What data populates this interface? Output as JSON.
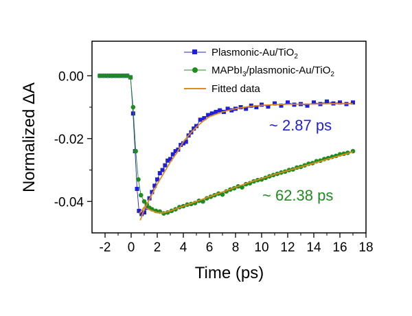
{
  "chart_data": {
    "type": "scatter",
    "xlabel": "Time (ps)",
    "ylabel": "Normalized ΔA",
    "xlim": [
      -3,
      18
    ],
    "ylim": [
      -0.05,
      0.011
    ],
    "xticks": [
      "-2",
      "0",
      "2",
      "4",
      "6",
      "8",
      "10",
      "12",
      "14",
      "16",
      "18"
    ],
    "yticks": [
      "0.00",
      "-0.02",
      "-0.04"
    ],
    "grid": false,
    "legend_position": "top-right",
    "legend": {
      "s1": "Plasmonic-Au/TiO",
      "s1_sub": "2",
      "s2_a": "MAPbI",
      "s2_sub1": "3",
      "s2_b": "/plasmonic-Au/TiO",
      "s2_sub2": "2",
      "fit": "Fitted data"
    },
    "series": [
      {
        "name": "Plasmonic-Au/TiO2",
        "color": "#1f1fd6",
        "marker": "square",
        "points": [
          [
            -2.4,
            0.0
          ],
          [
            -2.1,
            0.0
          ],
          [
            -1.8,
            0.0
          ],
          [
            -1.5,
            0.0
          ],
          [
            -1.2,
            0.0
          ],
          [
            -0.9,
            0.0
          ],
          [
            -0.6,
            0.0
          ],
          [
            -0.3,
            0.0
          ],
          [
            -0.05,
            -0.0005
          ],
          [
            0.15,
            -0.012
          ],
          [
            0.3,
            -0.024
          ],
          [
            0.45,
            -0.036
          ],
          [
            0.6,
            -0.043
          ],
          [
            0.8,
            -0.044
          ],
          [
            1.0,
            -0.0435
          ],
          [
            1.2,
            -0.042
          ],
          [
            1.4,
            -0.039
          ],
          [
            1.6,
            -0.037
          ],
          [
            1.8,
            -0.035
          ],
          [
            2.0,
            -0.033
          ],
          [
            2.2,
            -0.031
          ],
          [
            2.4,
            -0.03
          ],
          [
            2.6,
            -0.0285
          ],
          [
            2.8,
            -0.027
          ],
          [
            3.0,
            -0.0265
          ],
          [
            3.2,
            -0.025
          ],
          [
            3.4,
            -0.024
          ],
          [
            3.6,
            -0.0235
          ],
          [
            3.8,
            -0.022
          ],
          [
            4.0,
            -0.0215
          ],
          [
            4.2,
            -0.021
          ],
          [
            4.4,
            -0.019
          ],
          [
            4.6,
            -0.018
          ],
          [
            4.8,
            -0.0168
          ],
          [
            5.0,
            -0.016
          ],
          [
            5.3,
            -0.014
          ],
          [
            5.6,
            -0.0135
          ],
          [
            5.9,
            -0.0125
          ],
          [
            6.2,
            -0.012
          ],
          [
            6.5,
            -0.0115
          ],
          [
            6.8,
            -0.011
          ],
          [
            7.1,
            -0.0115
          ],
          [
            7.4,
            -0.0105
          ],
          [
            7.7,
            -0.011
          ],
          [
            8.0,
            -0.0105
          ],
          [
            8.4,
            -0.01
          ],
          [
            8.8,
            -0.0105
          ],
          [
            9.2,
            -0.0095
          ],
          [
            9.6,
            -0.01
          ],
          [
            10.0,
            -0.0092
          ],
          [
            10.5,
            -0.0098
          ],
          [
            11.0,
            -0.0088
          ],
          [
            11.5,
            -0.0095
          ],
          [
            12.0,
            -0.0085
          ],
          [
            12.5,
            -0.0092
          ],
          [
            13.0,
            -0.009
          ],
          [
            13.5,
            -0.0095
          ],
          [
            14.0,
            -0.0085
          ],
          [
            14.5,
            -0.009
          ],
          [
            15.0,
            -0.0082
          ],
          [
            15.5,
            -0.0088
          ],
          [
            16.0,
            -0.0085
          ],
          [
            16.5,
            -0.009
          ],
          [
            17.0,
            -0.0085
          ]
        ]
      },
      {
        "name": "MAPbI3/plasmonic-Au/TiO2",
        "color": "#1e8c1e",
        "marker": "circle",
        "points": [
          [
            -2.4,
            0.0
          ],
          [
            -2.1,
            0.0
          ],
          [
            -1.8,
            0.0
          ],
          [
            -1.5,
            0.0
          ],
          [
            -1.2,
            0.0
          ],
          [
            -0.9,
            0.0
          ],
          [
            -0.6,
            0.0
          ],
          [
            -0.3,
            0.0
          ],
          [
            -0.05,
            -0.0005
          ],
          [
            0.15,
            -0.01
          ],
          [
            0.35,
            -0.024
          ],
          [
            0.55,
            -0.033
          ],
          [
            0.75,
            -0.038
          ],
          [
            1.0,
            -0.04
          ],
          [
            1.2,
            -0.041
          ],
          [
            1.4,
            -0.042
          ],
          [
            1.6,
            -0.0425
          ],
          [
            1.9,
            -0.043
          ],
          [
            2.2,
            -0.0432
          ],
          [
            2.5,
            -0.0438
          ],
          [
            2.8,
            -0.0435
          ],
          [
            3.1,
            -0.043
          ],
          [
            3.4,
            -0.0425
          ],
          [
            3.7,
            -0.0418
          ],
          [
            4.0,
            -0.0415
          ],
          [
            4.3,
            -0.041
          ],
          [
            4.6,
            -0.0408
          ],
          [
            4.9,
            -0.0405
          ],
          [
            5.2,
            -0.0398
          ],
          [
            5.5,
            -0.04
          ],
          [
            5.8,
            -0.039
          ],
          [
            6.1,
            -0.0385
          ],
          [
            6.4,
            -0.038
          ],
          [
            6.7,
            -0.0375
          ],
          [
            7.0,
            -0.0378
          ],
          [
            7.3,
            -0.0368
          ],
          [
            7.6,
            -0.0362
          ],
          [
            7.9,
            -0.0358
          ],
          [
            8.2,
            -0.0352
          ],
          [
            8.5,
            -0.0355
          ],
          [
            8.8,
            -0.0345
          ],
          [
            9.1,
            -0.0342
          ],
          [
            9.4,
            -0.0336
          ],
          [
            9.7,
            -0.0332
          ],
          [
            10.0,
            -0.033
          ],
          [
            10.3,
            -0.0325
          ],
          [
            10.6,
            -0.032
          ],
          [
            10.9,
            -0.0316
          ],
          [
            11.2,
            -0.0312
          ],
          [
            11.5,
            -0.0308
          ],
          [
            11.8,
            -0.0305
          ],
          [
            12.1,
            -0.03
          ],
          [
            12.4,
            -0.0298
          ],
          [
            12.7,
            -0.0292
          ],
          [
            13.0,
            -0.029
          ],
          [
            13.3,
            -0.0285
          ],
          [
            13.6,
            -0.028
          ],
          [
            13.9,
            -0.0278
          ],
          [
            14.2,
            -0.0272
          ],
          [
            14.5,
            -0.027
          ],
          [
            14.8,
            -0.0265
          ],
          [
            15.1,
            -0.0262
          ],
          [
            15.4,
            -0.0258
          ],
          [
            15.7,
            -0.0255
          ],
          [
            16.0,
            -0.025
          ],
          [
            16.3,
            -0.0248
          ],
          [
            16.6,
            -0.0245
          ],
          [
            17.0,
            -0.024
          ]
        ]
      },
      {
        "name": "Fitted data",
        "color": "#e08a1e",
        "marker": "line",
        "points": [
          [
            0.7,
            -0.046
          ],
          [
            1.0,
            -0.0425
          ],
          [
            1.5,
            -0.0385
          ],
          [
            2.0,
            -0.0345
          ],
          [
            2.5,
            -0.031
          ],
          [
            3.0,
            -0.0275
          ],
          [
            3.5,
            -0.0245
          ],
          [
            4.0,
            -0.021
          ],
          [
            4.5,
            -0.0185
          ],
          [
            5.0,
            -0.0163
          ],
          [
            5.5,
            -0.0145
          ],
          [
            6.0,
            -0.013
          ],
          [
            7.0,
            -0.0115
          ],
          [
            8.0,
            -0.0105
          ],
          [
            9.0,
            -0.0098
          ],
          [
            10.0,
            -0.0094
          ],
          [
            11.0,
            -0.0092
          ],
          [
            12.0,
            -0.0091
          ],
          [
            13.0,
            -0.009
          ],
          [
            14.0,
            -0.009
          ],
          [
            15.0,
            -0.0089
          ],
          [
            16.0,
            -0.0089
          ],
          [
            17.0,
            -0.0089
          ]
        ]
      },
      {
        "name": "Fitted data",
        "color": "#e08a1e",
        "marker": "line",
        "points": [
          [
            0.6,
            -0.044
          ],
          [
            1.0,
            -0.0418
          ],
          [
            1.5,
            -0.0428
          ],
          [
            2.0,
            -0.0436
          ],
          [
            2.5,
            -0.0436
          ],
          [
            3.0,
            -0.043
          ],
          [
            4.0,
            -0.0415
          ],
          [
            5.0,
            -0.04
          ],
          [
            6.0,
            -0.0385
          ],
          [
            7.0,
            -0.037
          ],
          [
            8.0,
            -0.0355
          ],
          [
            9.0,
            -0.034
          ],
          [
            10.0,
            -0.0327
          ],
          [
            11.0,
            -0.0314
          ],
          [
            12.0,
            -0.0302
          ],
          [
            13.0,
            -0.029
          ],
          [
            14.0,
            -0.0278
          ],
          [
            15.0,
            -0.0266
          ],
          [
            16.0,
            -0.0254
          ],
          [
            17.0,
            -0.0242
          ]
        ]
      }
    ],
    "annotations": [
      {
        "text": "~ 2.87 ps",
        "color": "#1f1fd6"
      },
      {
        "text": "~ 62.38 ps",
        "color": "#1e8c1e"
      }
    ]
  }
}
